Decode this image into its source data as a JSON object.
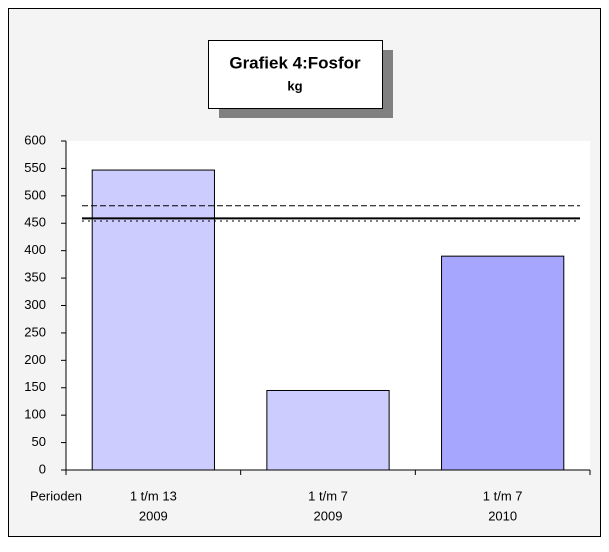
{
  "chart_data": {
    "type": "bar",
    "title": "Grafiek 4:Fosfor",
    "subtitle": "kg",
    "x_label": "Perioden",
    "categories": [
      [
        "1 t/m 13",
        "2009"
      ],
      [
        "1 t/m 7",
        "2009"
      ],
      [
        "1 t/m 7",
        "2010"
      ]
    ],
    "values": [
      547,
      145,
      390
    ],
    "colors": [
      "#ccccff",
      "#ccccff",
      "#a6a6ff"
    ],
    "ylim": [
      0,
      600
    ],
    "yticks": [
      0,
      50,
      100,
      150,
      200,
      250,
      300,
      350,
      400,
      450,
      500,
      550,
      600
    ],
    "reference_lines": [
      {
        "value": 482,
        "style": "dashed"
      },
      {
        "value": 459,
        "style": "solid"
      },
      {
        "value": 454,
        "style": "dotted"
      }
    ]
  }
}
